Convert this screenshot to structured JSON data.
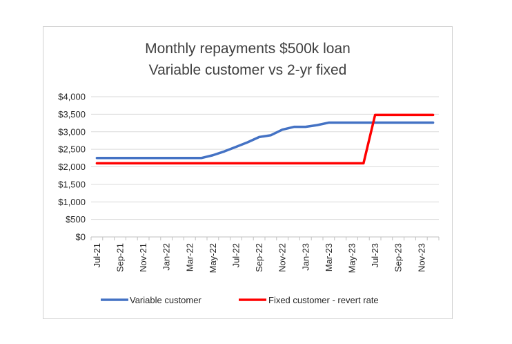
{
  "chart_data": {
    "type": "line",
    "title_lines": [
      "Monthly repayments $500k loan",
      "Variable customer vs 2-yr fixed"
    ],
    "xlabel": "",
    "ylabel": "",
    "ylim": [
      0,
      4000
    ],
    "yticks": [
      0,
      500,
      1000,
      1500,
      2000,
      2500,
      3000,
      3500,
      4000
    ],
    "ytick_labels": [
      "$0",
      "$500",
      "$1,000",
      "$1,500",
      "$2,000",
      "$2,500",
      "$3,000",
      "$3,500",
      "$4,000"
    ],
    "categories": [
      "Jul-21",
      "Aug-21",
      "Sep-21",
      "Oct-21",
      "Nov-21",
      "Dec-21",
      "Jan-22",
      "Feb-22",
      "Mar-22",
      "Apr-22",
      "May-22",
      "Jun-22",
      "Jul-22",
      "Aug-22",
      "Sep-22",
      "Oct-22",
      "Nov-22",
      "Dec-22",
      "Jan-23",
      "Feb-23",
      "Mar-23",
      "Apr-23",
      "May-23",
      "Jun-23",
      "Jul-23",
      "Aug-23",
      "Sep-23",
      "Oct-23",
      "Nov-23",
      "Dec-23"
    ],
    "xtick_labels": [
      "Jul-21",
      "Sep-21",
      "Nov-21",
      "Jan-22",
      "Mar-22",
      "May-22",
      "Jul-22",
      "Sep-22",
      "Nov-22",
      "Jan-23",
      "Mar-23",
      "May-23",
      "Jul-23",
      "Sep-23",
      "Nov-23"
    ],
    "grid": true,
    "legend_position": "bottom",
    "series": [
      {
        "name": "Variable customer",
        "color": "#4472C4",
        "values": [
          2250,
          2250,
          2250,
          2250,
          2250,
          2250,
          2250,
          2250,
          2250,
          2250,
          2330,
          2440,
          2570,
          2700,
          2850,
          2900,
          3060,
          3140,
          3140,
          3190,
          3260,
          3260,
          3260,
          3260,
          3260,
          3260,
          3260,
          3260,
          3260,
          3260
        ]
      },
      {
        "name": "Fixed customer - revert rate",
        "color": "#FF0000",
        "values": [
          2100,
          2100,
          2100,
          2100,
          2100,
          2100,
          2100,
          2100,
          2100,
          2100,
          2100,
          2100,
          2100,
          2100,
          2100,
          2100,
          2100,
          2100,
          2100,
          2100,
          2100,
          2100,
          2100,
          2100,
          3480,
          3480,
          3480,
          3480,
          3480,
          3480
        ]
      }
    ]
  }
}
